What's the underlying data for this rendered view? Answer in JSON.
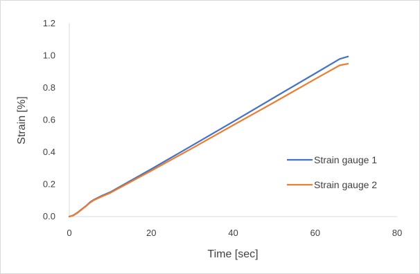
{
  "chart_data": {
    "type": "line",
    "title": "",
    "xlabel": "Time [sec]",
    "ylabel": "Strain [%]",
    "xlim": [
      0,
      80
    ],
    "ylim": [
      0,
      1.2
    ],
    "xticks": [
      "0",
      "20",
      "40",
      "60",
      "80"
    ],
    "yticks": [
      "0.0",
      "0.2",
      "0.4",
      "0.6",
      "0.8",
      "1.0",
      "1.2"
    ],
    "grid": false,
    "legend_position": "right",
    "series": [
      {
        "name": "Strain gauge 1",
        "color": "#4472C4",
        "x": [
          0,
          1,
          2,
          3,
          4,
          5,
          6,
          8,
          10,
          20,
          30,
          40,
          50,
          60,
          66,
          68
        ],
        "y": [
          0,
          0.008,
          0.025,
          0.045,
          0.065,
          0.088,
          0.105,
          0.13,
          0.152,
          0.295,
          0.442,
          0.59,
          0.74,
          0.89,
          0.98,
          0.995
        ]
      },
      {
        "name": "Strain gauge 2",
        "color": "#ED7D31",
        "x": [
          0,
          1,
          2,
          3,
          4,
          5,
          6,
          8,
          10,
          20,
          30,
          40,
          50,
          60,
          66,
          68
        ],
        "y": [
          0,
          0.007,
          0.023,
          0.043,
          0.063,
          0.085,
          0.102,
          0.125,
          0.147,
          0.285,
          0.425,
          0.568,
          0.71,
          0.855,
          0.94,
          0.95
        ]
      }
    ]
  }
}
